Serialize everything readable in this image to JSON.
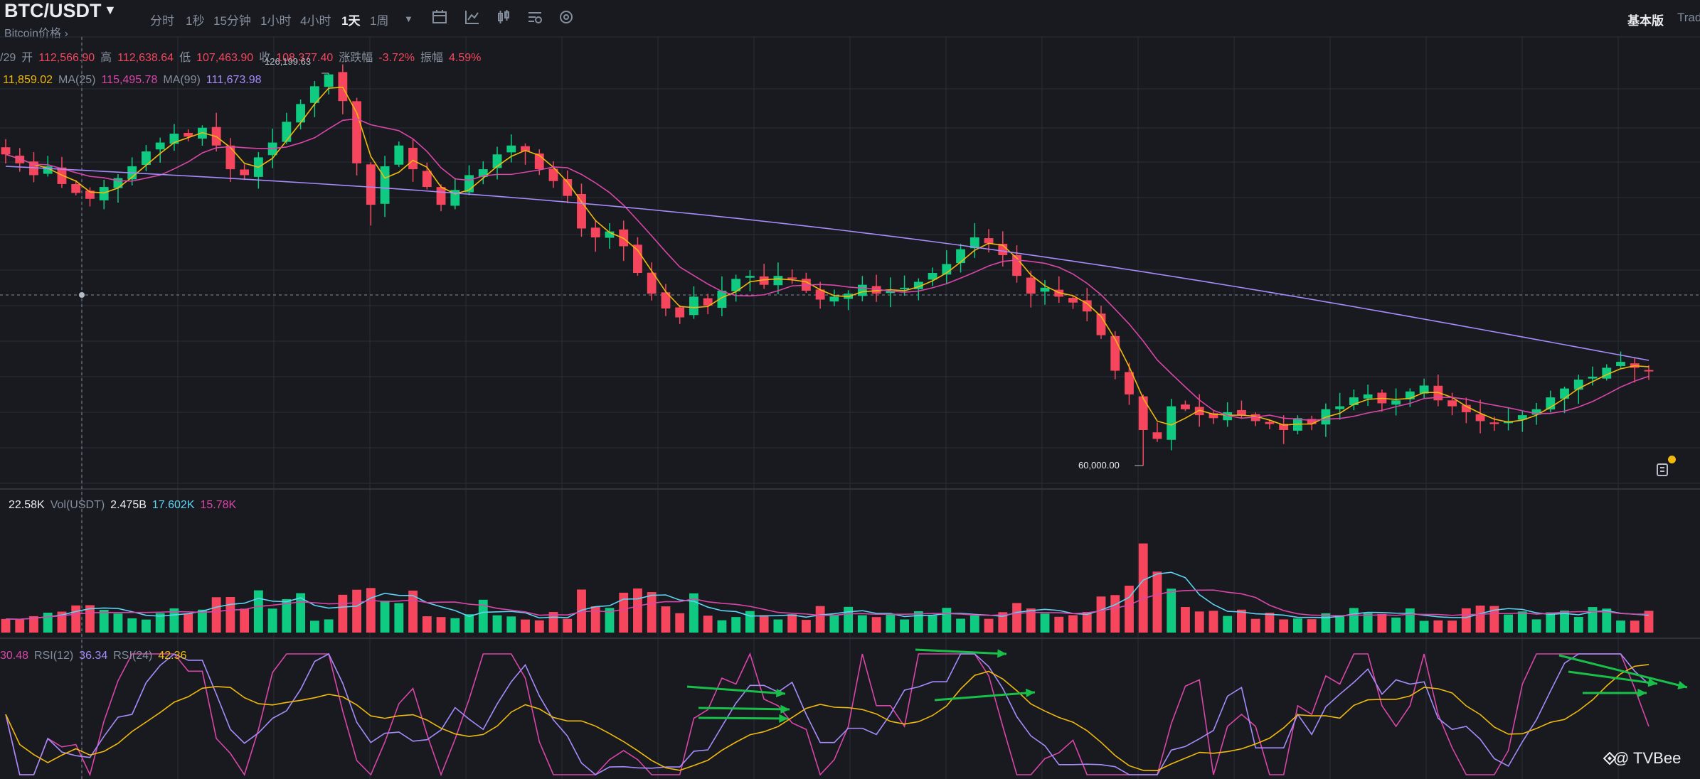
{
  "header": {
    "symbol": "BTC/USDT",
    "subtitle": "Bitcoin价格 ›",
    "timeframes": [
      "分时",
      "1秒",
      "15分钟",
      "1小时",
      "4小时",
      "1天",
      "1周"
    ],
    "active_timeframe": "1天",
    "mode_label": "基本版",
    "trade_label": "Trad"
  },
  "ohlc": {
    "date": "/29",
    "open_label": "开",
    "open": "112,566.90",
    "high_label": "高",
    "high": "112,638.64",
    "low_label": "低",
    "low": "107,463.90",
    "close_label": "收",
    "close": "108,377.40",
    "change_label": "涨跌幅",
    "change": "-3.72%",
    "amplitude_label": "振幅",
    "amplitude": "4.59%"
  },
  "ma": {
    "ma7_value": "11,859.02",
    "ma25_label": "MA(25)",
    "ma25_value": "115,495.78",
    "ma99_label": "MA(99)",
    "ma99_value": "111,673.98"
  },
  "annotations": {
    "high_marker": "126,199.63",
    "low_marker": "60,000.00"
  },
  "volume": {
    "vol_value": "22.58K",
    "vol_usdt_label": "Vol(USDT)",
    "vol_usdt_value": "2.475B",
    "ma1_value": "17.602K",
    "ma2_value": "15.78K"
  },
  "rsi": {
    "rsi6_value": "30.48",
    "rsi12_label": "RSI(12)",
    "rsi12_value": "36.34",
    "rsi24_label": "RSI(24)",
    "rsi24_value": "42.36"
  },
  "watermark": "@ TVBee",
  "colors": {
    "bg": "#181a20",
    "up": "#0ecb81",
    "down": "#f6465d",
    "ma7": "#f0b90b",
    "ma25": "#d946a8",
    "ma99": "#a78bfa",
    "grid": "#2b2f36",
    "arrow": "#18c04a"
  },
  "chart_data": {
    "type": "candlestick",
    "description_values": {
      "visible_high": 126199.63,
      "visible_low": 60000.0
    },
    "close_path": [
      112500,
      111000,
      109000,
      110500,
      107500,
      106000,
      105000,
      107000,
      108500,
      110500,
      113000,
      114500,
      116000,
      115500,
      117000,
      114000,
      110000,
      109000,
      112000,
      114500,
      118000,
      121000,
      124000,
      126000,
      121500,
      111000,
      104000,
      110500,
      114000,
      110000,
      107000,
      104000,
      106500,
      109000,
      110000,
      112500,
      114000,
      113000,
      110000,
      108000,
      105500,
      100000,
      98500,
      99500,
      97000,
      92500,
      89000,
      86500,
      85000,
      88500,
      87000,
      89500,
      91500,
      92000,
      90500,
      92000,
      91500,
      89500,
      88000,
      88500,
      89000,
      90500,
      89000,
      89500,
      90000,
      91000,
      92500,
      94000,
      96500,
      98500,
      97500,
      95500,
      92000,
      89000,
      90000,
      88500,
      87500,
      86000,
      82000,
      76000,
      72000,
      66000,
      64500,
      70000,
      69500,
      68500,
      68000,
      69000,
      68500,
      67500,
      67000,
      66000,
      68000,
      67000,
      69500,
      70000,
      71500,
      72000,
      70500,
      71000,
      72500,
      73500,
      71000,
      70000,
      69000,
      67500,
      67000,
      67500,
      68500,
      69500,
      71500,
      73000,
      74500,
      75000,
      76500,
      77500,
      76500,
      76000
    ]
  }
}
